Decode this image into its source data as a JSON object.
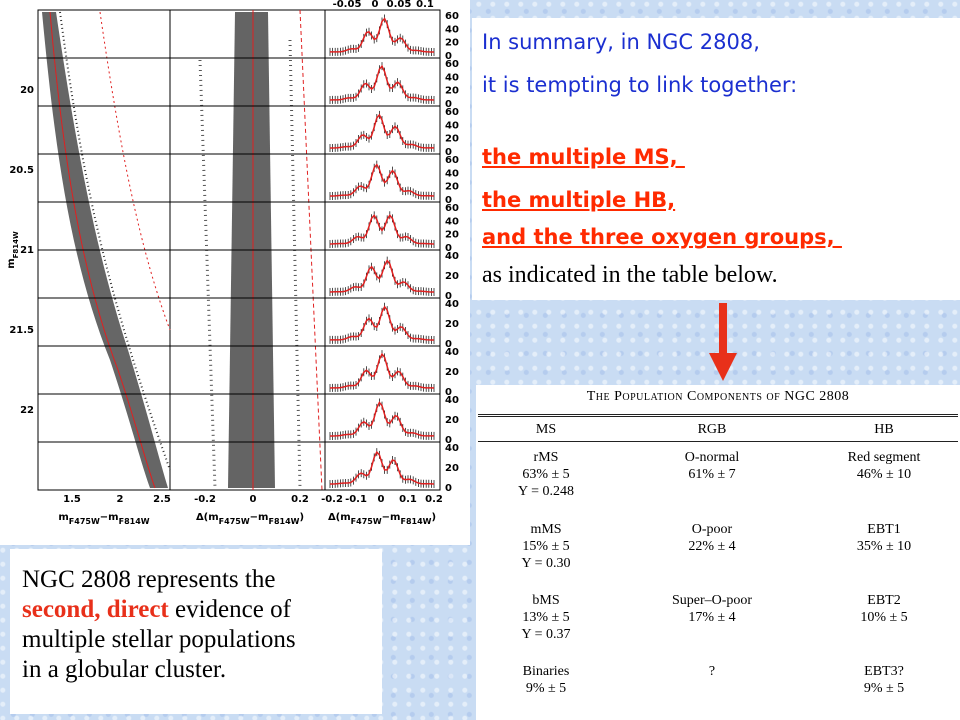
{
  "figure": {
    "y_label": [
      "m",
      "F814W"
    ],
    "left_x_label": [
      "m",
      "F475W",
      "−m",
      "F814W"
    ],
    "delta_x_label": [
      "Δ(m",
      "F475W",
      "−m",
      "F814W",
      ")"
    ],
    "left_yticks": [
      "20",
      "20.5",
      "21",
      "21.5",
      "22"
    ],
    "left_xticks": [
      "1.5",
      "2",
      "2.5"
    ],
    "middle_xticks": [
      "-0.2",
      "0",
      "0.2"
    ],
    "right_xticks": [
      "-0.2",
      "-0.1",
      "0",
      "0.1",
      "0.2"
    ],
    "top_xticks": [
      "-0.05",
      "0",
      "0.05",
      "0.1"
    ],
    "histogram_yticks": [
      [
        "60",
        "40",
        "20",
        "0"
      ],
      [
        "60",
        "40",
        "20",
        "0"
      ],
      [
        "60",
        "40",
        "20",
        "0"
      ],
      [
        "60",
        "40",
        "20",
        "0"
      ],
      [
        "60",
        "40",
        "20",
        "0"
      ],
      [
        "40",
        "20",
        "0"
      ],
      [
        "40",
        "20",
        "0"
      ],
      [
        "40",
        "20",
        "0"
      ],
      [
        "40",
        "20",
        "0"
      ],
      [
        "40",
        "20",
        "0"
      ]
    ]
  },
  "summary": {
    "line_1": "In summary, in NGC 2808,",
    "line_2": "it is tempting to link together:",
    "items": [
      "the multiple MS, ",
      "the multiple HB,",
      "and the three oxygen groups, "
    ],
    "closing": "as indicated in the table below."
  },
  "table": {
    "title": "The Population Components of NGC 2808",
    "columns": [
      "MS",
      "RGB",
      "HB"
    ],
    "rows": [
      [
        [
          "rMS",
          "63% ± 5",
          "Y = 0.248"
        ],
        [
          "O-normal",
          "61% ± 7"
        ],
        [
          "Red segment",
          "46% ± 10"
        ]
      ],
      [
        [
          "mMS",
          "15% ± 5",
          "Y = 0.30"
        ],
        [
          "O-poor",
          "22% ± 4"
        ],
        [
          "EBT1",
          "35% ± 10"
        ]
      ],
      [
        [
          "bMS",
          "13% ± 5",
          "Y = 0.37"
        ],
        [
          "Super–O-poor",
          "17% ± 4"
        ],
        [
          "EBT2",
          "10% ± 5"
        ]
      ],
      [
        [
          "Binaries",
          "9% ± 5"
        ],
        [
          "?"
        ],
        [
          "EBT3?",
          "9% ± 5"
        ]
      ]
    ]
  },
  "conclusion": {
    "line_1": "NGC 2808 represents the",
    "line_2_highlight": "second, direct",
    "line_2_rest": "evidence of",
    "line_3": "multiple stellar populations",
    "line_4": "in a globular cluster."
  }
}
